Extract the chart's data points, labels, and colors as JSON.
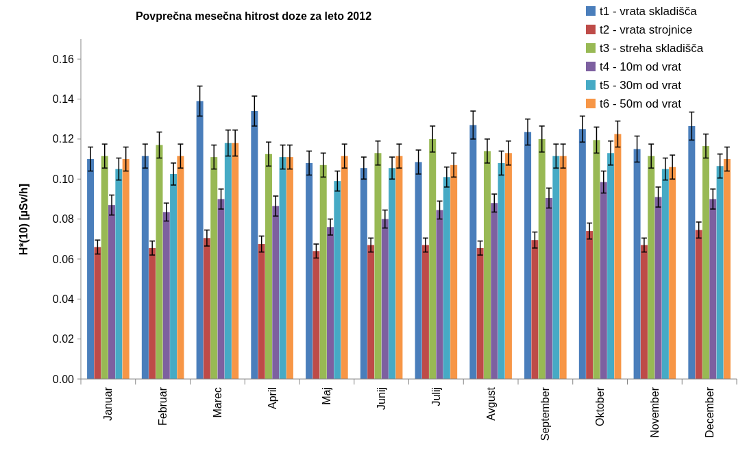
{
  "chart_data": {
    "type": "bar",
    "title": "Povprečna mesečna hitrost doze za leto 2012",
    "ylabel": "H*(10) [µSv/h]",
    "categories": [
      "Januar",
      "Februar",
      "Marec",
      "April",
      "Maj",
      "Junij",
      "Julij",
      "Avgust",
      "September",
      "Oktober",
      "November",
      "December"
    ],
    "series": [
      {
        "name": "t1 - vrata skladišča",
        "color": "#4a7ebb",
        "values": [
          0.11,
          0.1115,
          0.139,
          0.134,
          0.108,
          0.1055,
          0.1085,
          0.127,
          0.1235,
          0.125,
          0.115,
          0.1265
        ],
        "errors": [
          0.006,
          0.006,
          0.0075,
          0.0075,
          0.006,
          0.0055,
          0.006,
          0.007,
          0.0065,
          0.0065,
          0.0065,
          0.007
        ]
      },
      {
        "name": "t2 - vrata strojnice",
        "color": "#be4b48",
        "values": [
          0.066,
          0.0655,
          0.0705,
          0.0675,
          0.064,
          0.067,
          0.067,
          0.0655,
          0.0695,
          0.074,
          0.067,
          0.0745
        ],
        "errors": [
          0.0035,
          0.0035,
          0.004,
          0.004,
          0.0035,
          0.0035,
          0.0035,
          0.0035,
          0.004,
          0.004,
          0.0035,
          0.004
        ]
      },
      {
        "name": "t3 - streha skladišča",
        "color": "#98b954",
        "values": [
          0.1115,
          0.117,
          0.111,
          0.1125,
          0.107,
          0.113,
          0.12,
          0.114,
          0.12,
          0.1195,
          0.1115,
          0.1165
        ],
        "errors": [
          0.006,
          0.0065,
          0.006,
          0.006,
          0.006,
          0.006,
          0.0065,
          0.006,
          0.0065,
          0.0065,
          0.006,
          0.006
        ]
      },
      {
        "name": "t4 - 10m od vrat",
        "color": "#7d60a0",
        "values": [
          0.087,
          0.0835,
          0.09,
          0.0865,
          0.076,
          0.08,
          0.0845,
          0.088,
          0.0905,
          0.0985,
          0.091,
          0.09
        ],
        "errors": [
          0.005,
          0.0045,
          0.005,
          0.005,
          0.004,
          0.0045,
          0.0045,
          0.0045,
          0.005,
          0.0055,
          0.005,
          0.005
        ]
      },
      {
        "name": "t5 - 30m od vrat",
        "color": "#46aac5",
        "values": [
          0.105,
          0.1025,
          0.118,
          0.111,
          0.099,
          0.1055,
          0.101,
          0.108,
          0.1115,
          0.113,
          0.105,
          0.1065
        ],
        "errors": [
          0.0055,
          0.0055,
          0.0065,
          0.006,
          0.005,
          0.0055,
          0.005,
          0.006,
          0.006,
          0.006,
          0.0055,
          0.006
        ]
      },
      {
        "name": "t6 - 50m od vrat",
        "color": "#f79646",
        "values": [
          0.11,
          0.1115,
          0.118,
          0.111,
          0.1115,
          0.1115,
          0.107,
          0.113,
          0.1115,
          0.1225,
          0.106,
          0.11
        ],
        "errors": [
          0.006,
          0.006,
          0.0065,
          0.006,
          0.006,
          0.006,
          0.006,
          0.006,
          0.006,
          0.0065,
          0.006,
          0.006
        ]
      }
    ],
    "ylim": [
      0,
      0.17
    ],
    "yticks": [
      {
        "value": 0,
        "label": "0.00"
      },
      {
        "value": 0.02,
        "label": "0.02"
      },
      {
        "value": 0.04,
        "label": "0.04"
      },
      {
        "value": 0.06,
        "label": "0.06"
      },
      {
        "value": 0.08,
        "label": "0.08"
      },
      {
        "value": 0.1,
        "label": "0.10"
      },
      {
        "value": 0.12,
        "label": "0.12"
      },
      {
        "value": 0.14,
        "label": "0.14"
      },
      {
        "value": 0.16,
        "label": "0.16"
      }
    ],
    "grid": false,
    "legend": "top right"
  }
}
